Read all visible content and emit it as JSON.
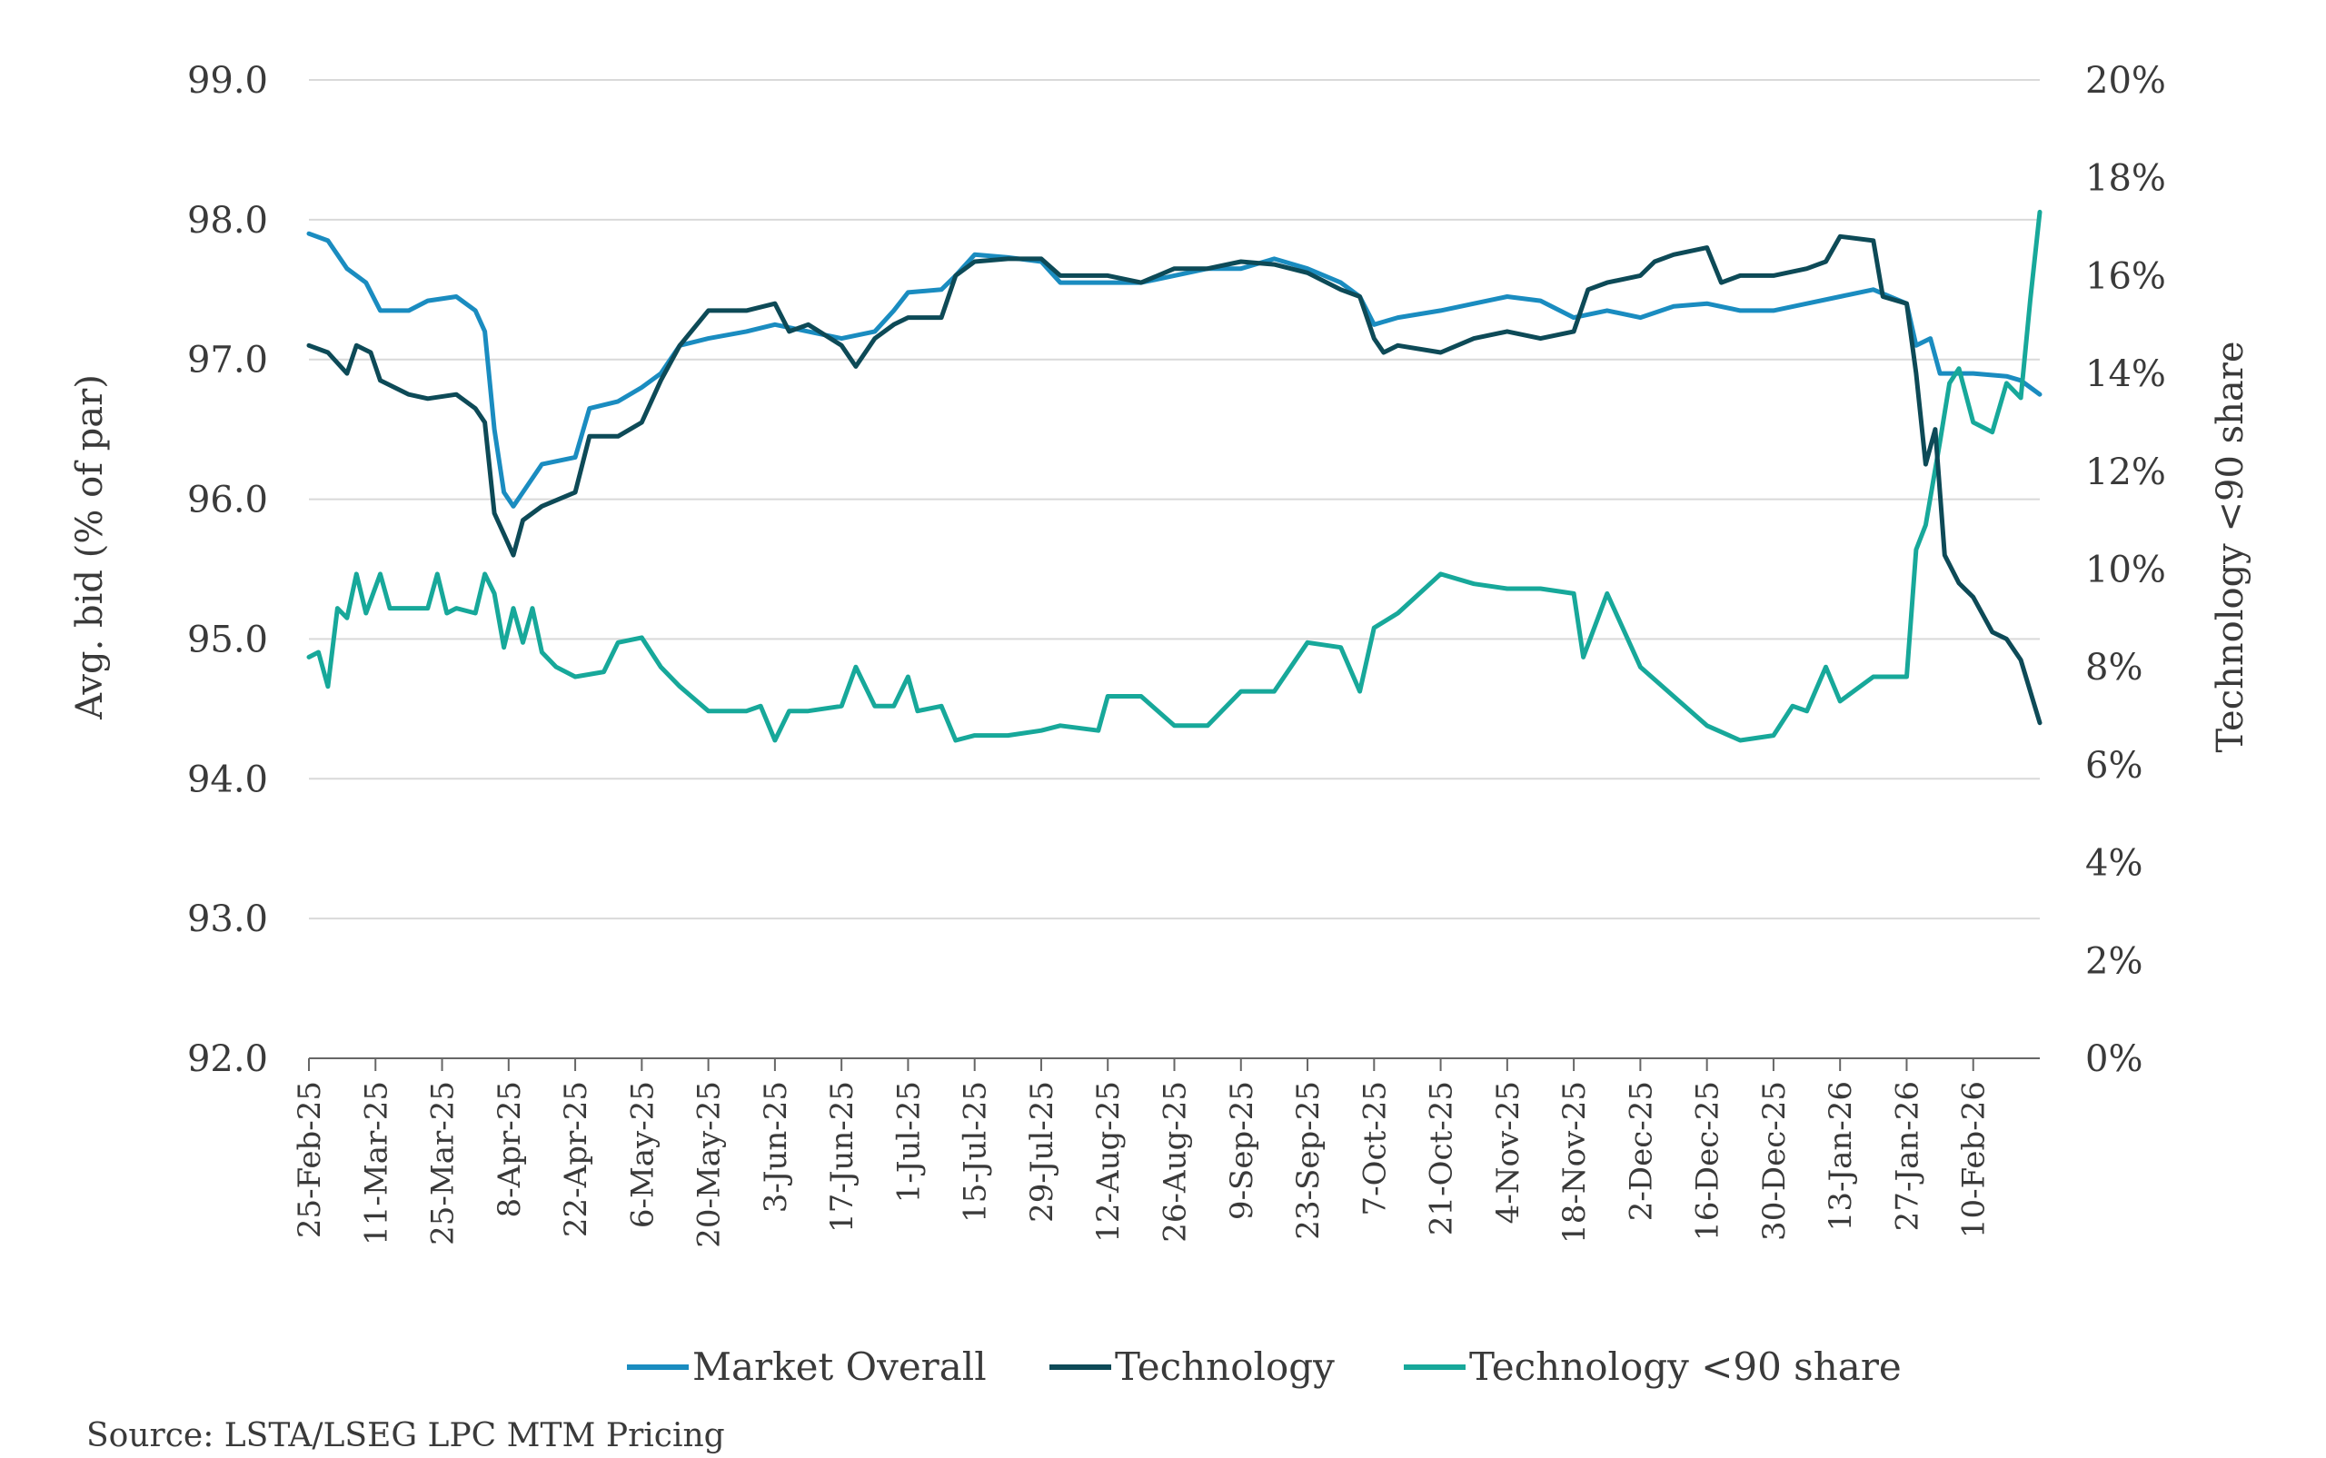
{
  "chart_data": {
    "type": "line",
    "x_labels": [
      "25-Feb-25",
      "11-Mar-25",
      "25-Mar-25",
      "8-Apr-25",
      "22-Apr-25",
      "6-May-25",
      "20-May-25",
      "3-Jun-25",
      "17-Jun-25",
      "1-Jul-25",
      "15-Jul-25",
      "29-Jul-25",
      "12-Aug-25",
      "26-Aug-25",
      "9-Sep-25",
      "23-Sep-25",
      "7-Oct-25",
      "21-Oct-25",
      "4-Nov-25",
      "18-Nov-25",
      "2-Dec-25",
      "16-Dec-25",
      "30-Dec-25",
      "13-Jan-26",
      "27-Jan-26",
      "10-Feb-26"
    ],
    "x_range": [
      "2025-02-25",
      "2026-02-24"
    ],
    "ylabel_left": "Avg. bid (% of par)",
    "ylabel_right": "Technology <90 share",
    "ylim_left": [
      92.0,
      99.0
    ],
    "ylim_right": [
      0,
      20
    ],
    "yticks_left": [
      "92.0",
      "93.0",
      "94.0",
      "95.0",
      "96.0",
      "97.0",
      "98.0",
      "99.0"
    ],
    "yticks_right": [
      "0%",
      "2%",
      "4%",
      "6%",
      "8%",
      "10%",
      "12%",
      "14%",
      "16%",
      "18%",
      "20%"
    ],
    "grid": true,
    "legend_position": "bottom",
    "series": [
      {
        "name": "Market Overall",
        "axis": "left",
        "color": "#1a8cc0",
        "points": [
          [
            "2025-02-25",
            97.9
          ],
          [
            "2025-03-01",
            97.85
          ],
          [
            "2025-03-05",
            97.65
          ],
          [
            "2025-03-09",
            97.55
          ],
          [
            "2025-03-12",
            97.35
          ],
          [
            "2025-03-18",
            97.35
          ],
          [
            "2025-03-22",
            97.42
          ],
          [
            "2025-03-28",
            97.45
          ],
          [
            "2025-04-01",
            97.35
          ],
          [
            "2025-04-03",
            97.2
          ],
          [
            "2025-04-05",
            96.5
          ],
          [
            "2025-04-07",
            96.05
          ],
          [
            "2025-04-09",
            95.95
          ],
          [
            "2025-04-11",
            96.05
          ],
          [
            "2025-04-15",
            96.25
          ],
          [
            "2025-04-22",
            96.3
          ],
          [
            "2025-04-25",
            96.65
          ],
          [
            "2025-05-01",
            96.7
          ],
          [
            "2025-05-06",
            96.8
          ],
          [
            "2025-05-10",
            96.9
          ],
          [
            "2025-05-14",
            97.1
          ],
          [
            "2025-05-20",
            97.15
          ],
          [
            "2025-05-28",
            97.2
          ],
          [
            "2025-06-03",
            97.25
          ],
          [
            "2025-06-10",
            97.2
          ],
          [
            "2025-06-17",
            97.15
          ],
          [
            "2025-06-24",
            97.2
          ],
          [
            "2025-06-28",
            97.35
          ],
          [
            "2025-07-01",
            97.48
          ],
          [
            "2025-07-08",
            97.5
          ],
          [
            "2025-07-11",
            97.6
          ],
          [
            "2025-07-15",
            97.75
          ],
          [
            "2025-07-22",
            97.73
          ],
          [
            "2025-07-29",
            97.7
          ],
          [
            "2025-08-02",
            97.55
          ],
          [
            "2025-08-12",
            97.55
          ],
          [
            "2025-08-19",
            97.55
          ],
          [
            "2025-08-26",
            97.6
          ],
          [
            "2025-09-02",
            97.65
          ],
          [
            "2025-09-09",
            97.65
          ],
          [
            "2025-09-16",
            97.72
          ],
          [
            "2025-09-23",
            97.65
          ],
          [
            "2025-09-30",
            97.55
          ],
          [
            "2025-10-04",
            97.45
          ],
          [
            "2025-10-07",
            97.25
          ],
          [
            "2025-10-12",
            97.3
          ],
          [
            "2025-10-21",
            97.35
          ],
          [
            "2025-10-28",
            97.4
          ],
          [
            "2025-11-04",
            97.45
          ],
          [
            "2025-11-11",
            97.42
          ],
          [
            "2025-11-18",
            97.3
          ],
          [
            "2025-11-25",
            97.35
          ],
          [
            "2025-12-02",
            97.3
          ],
          [
            "2025-12-09",
            97.38
          ],
          [
            "2025-12-16",
            97.4
          ],
          [
            "2025-12-23",
            97.35
          ],
          [
            "2025-12-30",
            97.35
          ],
          [
            "2026-01-06",
            97.4
          ],
          [
            "2026-01-13",
            97.45
          ],
          [
            "2026-01-20",
            97.5
          ],
          [
            "2026-01-27",
            97.4
          ],
          [
            "2026-01-29",
            97.1
          ],
          [
            "2026-02-01",
            97.15
          ],
          [
            "2026-02-03",
            96.9
          ],
          [
            "2026-02-10",
            96.9
          ],
          [
            "2026-02-17",
            96.88
          ],
          [
            "2026-02-20",
            96.85
          ],
          [
            "2026-02-24",
            96.75
          ]
        ]
      },
      {
        "name": "Technology",
        "axis": "left",
        "color": "#0d4a57",
        "points": [
          [
            "2025-02-25",
            97.1
          ],
          [
            "2025-03-01",
            97.05
          ],
          [
            "2025-03-05",
            96.9
          ],
          [
            "2025-03-07",
            97.1
          ],
          [
            "2025-03-10",
            97.05
          ],
          [
            "2025-03-12",
            96.85
          ],
          [
            "2025-03-18",
            96.75
          ],
          [
            "2025-03-22",
            96.72
          ],
          [
            "2025-03-28",
            96.75
          ],
          [
            "2025-04-01",
            96.65
          ],
          [
            "2025-04-03",
            96.55
          ],
          [
            "2025-04-05",
            95.9
          ],
          [
            "2025-04-07",
            95.75
          ],
          [
            "2025-04-09",
            95.6
          ],
          [
            "2025-04-11",
            95.85
          ],
          [
            "2025-04-15",
            95.95
          ],
          [
            "2025-04-22",
            96.05
          ],
          [
            "2025-04-25",
            96.45
          ],
          [
            "2025-05-01",
            96.45
          ],
          [
            "2025-05-06",
            96.55
          ],
          [
            "2025-05-10",
            96.85
          ],
          [
            "2025-05-14",
            97.1
          ],
          [
            "2025-05-20",
            97.35
          ],
          [
            "2025-05-28",
            97.35
          ],
          [
            "2025-06-03",
            97.4
          ],
          [
            "2025-06-06",
            97.2
          ],
          [
            "2025-06-10",
            97.25
          ],
          [
            "2025-06-17",
            97.1
          ],
          [
            "2025-06-20",
            96.95
          ],
          [
            "2025-06-24",
            97.15
          ],
          [
            "2025-06-28",
            97.25
          ],
          [
            "2025-07-01",
            97.3
          ],
          [
            "2025-07-08",
            97.3
          ],
          [
            "2025-07-11",
            97.6
          ],
          [
            "2025-07-15",
            97.7
          ],
          [
            "2025-07-22",
            97.72
          ],
          [
            "2025-07-29",
            97.72
          ],
          [
            "2025-08-02",
            97.6
          ],
          [
            "2025-08-12",
            97.6
          ],
          [
            "2025-08-19",
            97.55
          ],
          [
            "2025-08-26",
            97.65
          ],
          [
            "2025-09-02",
            97.65
          ],
          [
            "2025-09-09",
            97.7
          ],
          [
            "2025-09-16",
            97.68
          ],
          [
            "2025-09-23",
            97.62
          ],
          [
            "2025-09-30",
            97.5
          ],
          [
            "2025-10-04",
            97.45
          ],
          [
            "2025-10-07",
            97.15
          ],
          [
            "2025-10-09",
            97.05
          ],
          [
            "2025-10-12",
            97.1
          ],
          [
            "2025-10-21",
            97.05
          ],
          [
            "2025-10-28",
            97.15
          ],
          [
            "2025-11-04",
            97.2
          ],
          [
            "2025-11-11",
            97.15
          ],
          [
            "2025-11-18",
            97.2
          ],
          [
            "2025-11-21",
            97.5
          ],
          [
            "2025-11-25",
            97.55
          ],
          [
            "2025-12-02",
            97.6
          ],
          [
            "2025-12-05",
            97.7
          ],
          [
            "2025-12-09",
            97.75
          ],
          [
            "2025-12-16",
            97.8
          ],
          [
            "2025-12-19",
            97.55
          ],
          [
            "2025-12-23",
            97.6
          ],
          [
            "2025-12-30",
            97.6
          ],
          [
            "2026-01-06",
            97.65
          ],
          [
            "2026-01-10",
            97.7
          ],
          [
            "2026-01-13",
            97.88
          ],
          [
            "2026-01-20",
            97.85
          ],
          [
            "2026-01-22",
            97.45
          ],
          [
            "2026-01-27",
            97.4
          ],
          [
            "2026-01-29",
            96.9
          ],
          [
            "2026-01-31",
            96.25
          ],
          [
            "2026-02-02",
            96.5
          ],
          [
            "2026-02-04",
            95.6
          ],
          [
            "2026-02-07",
            95.4
          ],
          [
            "2026-02-10",
            95.3
          ],
          [
            "2026-02-14",
            95.05
          ],
          [
            "2026-02-17",
            95.0
          ],
          [
            "2026-02-20",
            94.85
          ],
          [
            "2026-02-24",
            94.4
          ]
        ]
      },
      {
        "name": "Technology <90 share",
        "axis": "right",
        "color": "#17a89a",
        "points": [
          [
            "2025-02-25",
            8.2
          ],
          [
            "2025-02-27",
            8.3
          ],
          [
            "2025-03-01",
            7.6
          ],
          [
            "2025-03-03",
            9.2
          ],
          [
            "2025-03-05",
            9.0
          ],
          [
            "2025-03-07",
            9.9
          ],
          [
            "2025-03-09",
            9.1
          ],
          [
            "2025-03-12",
            9.9
          ],
          [
            "2025-03-14",
            9.2
          ],
          [
            "2025-03-18",
            9.2
          ],
          [
            "2025-03-22",
            9.2
          ],
          [
            "2025-03-24",
            9.9
          ],
          [
            "2025-03-26",
            9.1
          ],
          [
            "2025-03-28",
            9.2
          ],
          [
            "2025-04-01",
            9.1
          ],
          [
            "2025-04-03",
            9.9
          ],
          [
            "2025-04-05",
            9.5
          ],
          [
            "2025-04-07",
            8.4
          ],
          [
            "2025-04-09",
            9.2
          ],
          [
            "2025-04-11",
            8.5
          ],
          [
            "2025-04-13",
            9.2
          ],
          [
            "2025-04-15",
            8.3
          ],
          [
            "2025-04-18",
            8.0
          ],
          [
            "2025-04-22",
            7.8
          ],
          [
            "2025-04-28",
            7.9
          ],
          [
            "2025-05-01",
            8.5
          ],
          [
            "2025-05-06",
            8.6
          ],
          [
            "2025-05-10",
            8.0
          ],
          [
            "2025-05-14",
            7.6
          ],
          [
            "2025-05-20",
            7.1
          ],
          [
            "2025-05-28",
            7.1
          ],
          [
            "2025-05-31",
            7.2
          ],
          [
            "2025-06-03",
            6.5
          ],
          [
            "2025-06-06",
            7.1
          ],
          [
            "2025-06-10",
            7.1
          ],
          [
            "2025-06-17",
            7.2
          ],
          [
            "2025-06-20",
            8.0
          ],
          [
            "2025-06-24",
            7.2
          ],
          [
            "2025-06-28",
            7.2
          ],
          [
            "2025-07-01",
            7.8
          ],
          [
            "2025-07-03",
            7.1
          ],
          [
            "2025-07-08",
            7.2
          ],
          [
            "2025-07-11",
            6.5
          ],
          [
            "2025-07-15",
            6.6
          ],
          [
            "2025-07-22",
            6.6
          ],
          [
            "2025-07-29",
            6.7
          ],
          [
            "2025-08-02",
            6.8
          ],
          [
            "2025-08-10",
            6.7
          ],
          [
            "2025-08-12",
            7.4
          ],
          [
            "2025-08-19",
            7.4
          ],
          [
            "2025-08-26",
            6.8
          ],
          [
            "2025-09-02",
            6.8
          ],
          [
            "2025-09-09",
            7.5
          ],
          [
            "2025-09-16",
            7.5
          ],
          [
            "2025-09-23",
            8.5
          ],
          [
            "2025-09-30",
            8.4
          ],
          [
            "2025-10-04",
            7.5
          ],
          [
            "2025-10-07",
            8.8
          ],
          [
            "2025-10-12",
            9.1
          ],
          [
            "2025-10-21",
            9.9
          ],
          [
            "2025-10-28",
            9.7
          ],
          [
            "2025-11-04",
            9.6
          ],
          [
            "2025-11-11",
            9.6
          ],
          [
            "2025-11-18",
            9.5
          ],
          [
            "2025-11-20",
            8.2
          ],
          [
            "2025-11-25",
            9.5
          ],
          [
            "2025-12-02",
            8.0
          ],
          [
            "2025-12-09",
            7.4
          ],
          [
            "2025-12-16",
            6.8
          ],
          [
            "2025-12-23",
            6.5
          ],
          [
            "2025-12-30",
            6.6
          ],
          [
            "2026-01-03",
            7.2
          ],
          [
            "2026-01-06",
            7.1
          ],
          [
            "2026-01-10",
            8.0
          ],
          [
            "2026-01-13",
            7.3
          ],
          [
            "2026-01-20",
            7.8
          ],
          [
            "2026-01-27",
            7.8
          ],
          [
            "2026-01-29",
            10.4
          ],
          [
            "2026-01-31",
            10.9
          ],
          [
            "2026-02-03",
            12.6
          ],
          [
            "2026-02-05",
            13.8
          ],
          [
            "2026-02-07",
            14.1
          ],
          [
            "2026-02-10",
            13.0
          ],
          [
            "2026-02-14",
            12.8
          ],
          [
            "2026-02-17",
            13.8
          ],
          [
            "2026-02-20",
            13.5
          ],
          [
            "2026-02-22",
            15.5
          ],
          [
            "2026-02-24",
            17.3
          ]
        ]
      }
    ]
  },
  "source_note": "Source: LSTA/LSEG LPC MTM Pricing"
}
